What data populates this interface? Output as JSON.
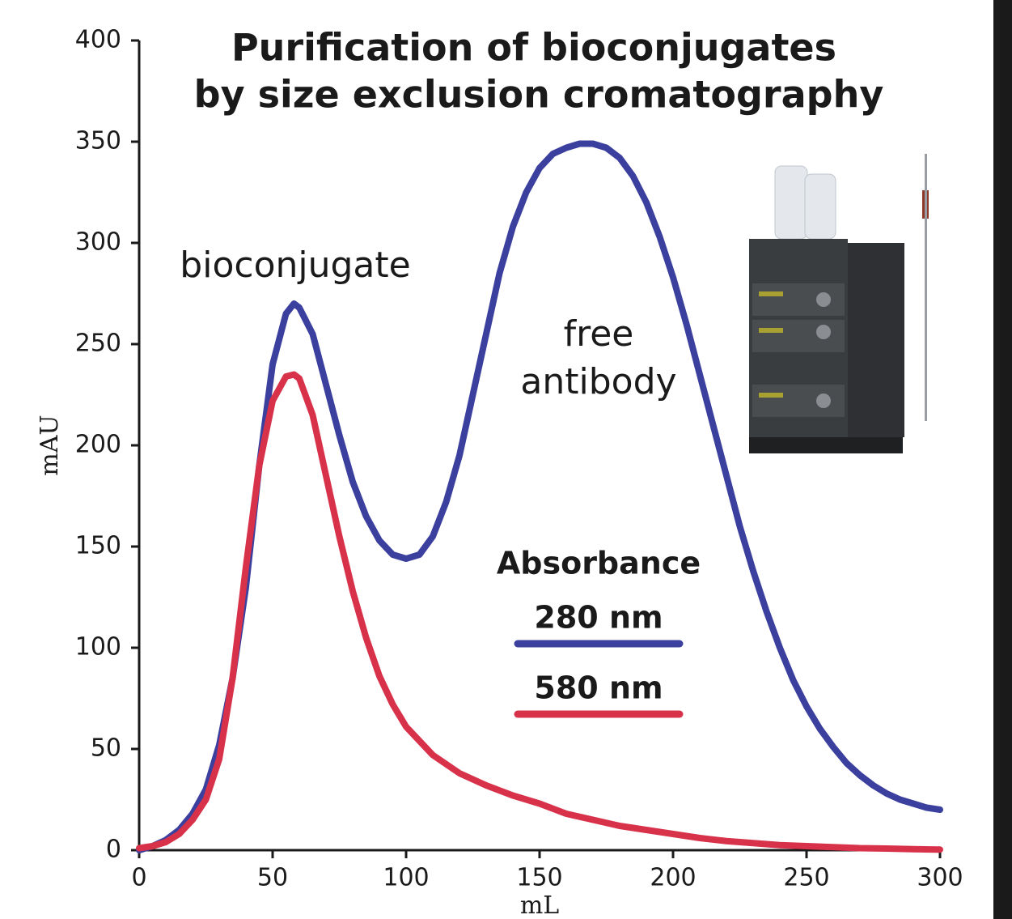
{
  "chart_data": {
    "type": "line",
    "title": [
      "Purification of bioconjugates",
      "by size exclusion cromatography"
    ],
    "x_label": "mL",
    "y_label": "mAU",
    "xlim": [
      0,
      300
    ],
    "xticks": [
      0,
      50,
      100,
      150,
      200,
      250,
      300
    ],
    "ylim": [
      0,
      400
    ],
    "yticks": [
      0,
      50,
      100,
      150,
      200,
      250,
      300,
      350,
      400
    ],
    "annotations": [
      "bioconjugate",
      "free",
      "antibody"
    ],
    "legend_title": "Absorbance",
    "series": [
      {
        "name": "280 nm",
        "color": "#3b3f9e",
        "x": [
          0,
          5,
          10,
          15,
          20,
          25,
          30,
          35,
          40,
          45,
          50,
          55,
          58,
          60,
          65,
          70,
          75,
          80,
          85,
          90,
          95,
          100,
          105,
          110,
          115,
          120,
          125,
          130,
          135,
          140,
          145,
          150,
          155,
          160,
          165,
          170,
          175,
          180,
          185,
          190,
          195,
          200,
          205,
          210,
          215,
          220,
          225,
          230,
          235,
          240,
          245,
          250,
          255,
          260,
          265,
          270,
          275,
          280,
          285,
          290,
          295,
          300
        ],
        "values": [
          0,
          2,
          5,
          10,
          18,
          30,
          52,
          85,
          130,
          190,
          240,
          265,
          270,
          268,
          255,
          230,
          205,
          182,
          165,
          153,
          146,
          144,
          146,
          155,
          172,
          195,
          225,
          255,
          285,
          308,
          325,
          337,
          344,
          347,
          349,
          349,
          347,
          342,
          333,
          320,
          303,
          283,
          260,
          235,
          210,
          185,
          160,
          138,
          118,
          100,
          84,
          71,
          60,
          51,
          43,
          37,
          32,
          28,
          25,
          23,
          21,
          20
        ]
      },
      {
        "name": "580 nm",
        "color": "#d8324b",
        "x": [
          0,
          5,
          10,
          15,
          20,
          25,
          30,
          35,
          40,
          45,
          50,
          55,
          58,
          60,
          65,
          70,
          75,
          80,
          85,
          90,
          95,
          100,
          110,
          120,
          130,
          140,
          150,
          160,
          170,
          180,
          190,
          200,
          210,
          220,
          230,
          240,
          250,
          260,
          270,
          280,
          290,
          300
        ],
        "values": [
          1,
          2,
          4,
          8,
          15,
          25,
          45,
          85,
          140,
          190,
          222,
          234,
          235,
          233,
          215,
          185,
          155,
          128,
          105,
          86,
          72,
          61,
          47,
          38,
          32,
          27,
          23,
          18,
          15,
          12,
          10,
          8,
          6,
          4.5,
          3.5,
          2.5,
          2,
          1.5,
          1,
          0.8,
          0.5,
          0.3
        ]
      }
    ]
  }
}
